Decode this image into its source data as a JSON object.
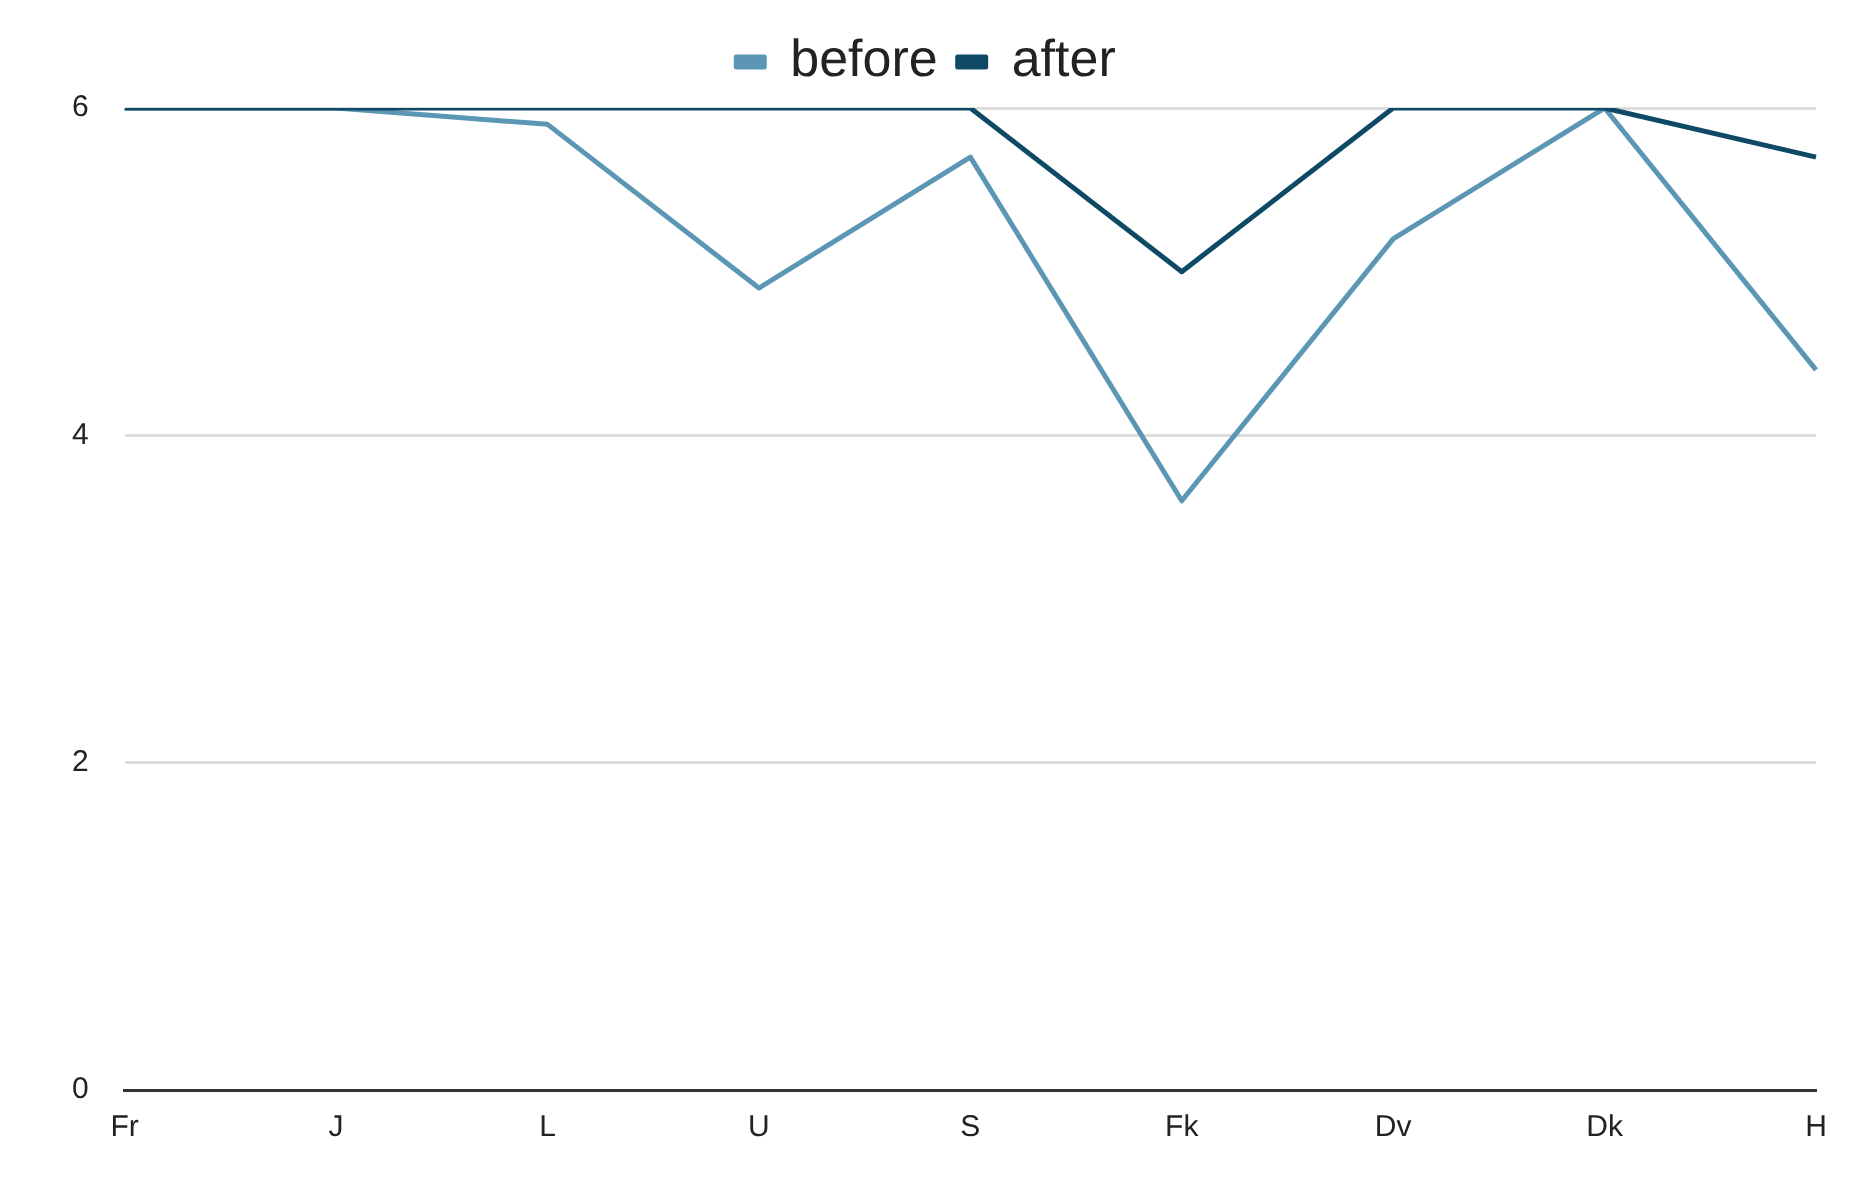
{
  "chart_data": {
    "type": "line",
    "categories": [
      "Fr",
      "J",
      "L",
      "U",
      "S",
      "Fk",
      "Dv",
      "Dk",
      "H"
    ],
    "series": [
      {
        "name": "before",
        "color": "#5b97b5",
        "values": [
          6,
          6,
          5.9,
          4.9,
          5.7,
          3.6,
          5.2,
          6,
          4.4
        ]
      },
      {
        "name": "after",
        "color": "#0e4a66",
        "values": [
          6,
          6,
          6,
          6,
          6,
          5,
          6,
          6,
          5.7
        ]
      }
    ],
    "ylim": [
      0,
      6
    ],
    "yticks": [
      0,
      2,
      4,
      6
    ],
    "grid": "y",
    "legend": "top",
    "marker": "none"
  }
}
